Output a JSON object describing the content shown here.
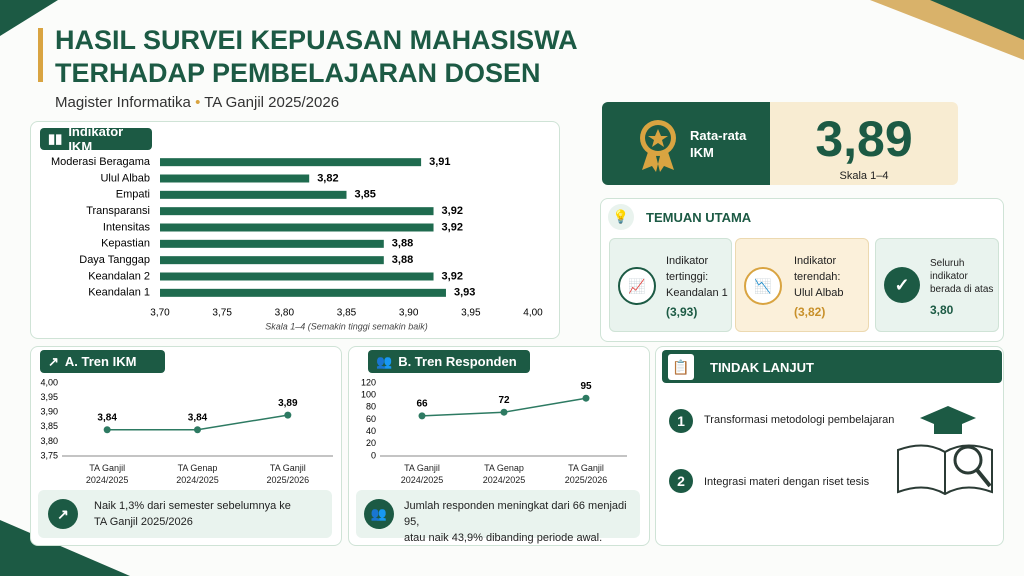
{
  "header": {
    "title": "HASIL SURVEI KEPUASAN MAHASISWA\nTERHADAP PEMBELAJARAN DOSEN",
    "program": "Magister Informatika",
    "period": "TA Ganjil 2025/2026"
  },
  "score": {
    "label": "Rata-rata\nIKM",
    "value": "3,89",
    "scale": "Skala 1–4"
  },
  "findings": {
    "title": "TEMUAN UTAMA",
    "items": [
      {
        "text": "Indikator\ntertinggi:\nKeandalan 1",
        "value": "(3,93)"
      },
      {
        "text": "Indikator\nterendah:\nUlul Albab",
        "value": "(3,82)"
      },
      {
        "text": "Seluruh\nindikator\nberada di atas",
        "value": "3,80"
      }
    ]
  },
  "followup": {
    "title": "TINDAK LANJUT",
    "items": [
      {
        "number": "1",
        "text": "Transformasi metodologi pembelajaran"
      },
      {
        "number": "2",
        "text": "Integrasi materi dengan riset tesis"
      }
    ]
  },
  "chart_data": [
    {
      "type": "barh",
      "title": "Indikator IKM",
      "x_label": "Skala 1–4 (Semakin tinggi semakin baik)",
      "categories": [
        "Moderasi Beragama",
        "Ulul Albab",
        "Empati",
        "Transparansi",
        "Intensitas",
        "Kepastian",
        "Daya Tanggap",
        "Keandalan 2",
        "Keandalan 1"
      ],
      "values": [
        3.91,
        3.82,
        3.85,
        3.92,
        3.92,
        3.88,
        3.88,
        3.92,
        3.93
      ],
      "value_labels": [
        "3,91",
        "3,82",
        "3,85",
        "3,92",
        "3,92",
        "3,88",
        "3,88",
        "3,92",
        "3,93"
      ],
      "color": "#1f6b4f",
      "grid": false,
      "xlim": [
        3.7,
        4.0
      ],
      "xticks": [
        {
          "value": 3.7,
          "label": "3,70"
        },
        {
          "value": 3.75,
          "label": "3,75"
        },
        {
          "value": 3.8,
          "label": "3,80"
        },
        {
          "value": 3.85,
          "label": "3,85"
        },
        {
          "value": 3.9,
          "label": "3,90"
        },
        {
          "value": 3.95,
          "label": "3,95"
        },
        {
          "value": 4.0,
          "label": "4,00"
        }
      ]
    },
    {
      "type": "line",
      "title": "A. Tren IKM",
      "note": "Naik 1,3% dari semester sebelumnya ke\nTA Ganjil 2025/2026",
      "categories": [
        "TA Ganjil\n2024/2025",
        "TA Genap\n2024/2025",
        "TA Ganjil\n2025/2026"
      ],
      "values": [
        3.84,
        3.84,
        3.89
      ],
      "value_labels": [
        "3,84",
        "3,84",
        "3,89"
      ],
      "color": "#2d7a62",
      "grid": false,
      "ylim": [
        3.75,
        4.0
      ],
      "yticks": [
        {
          "value": 3.75,
          "label": "3,75"
        },
        {
          "value": 3.8,
          "label": "3,80"
        },
        {
          "value": 3.85,
          "label": "3,85"
        },
        {
          "value": 3.9,
          "label": "3,90"
        },
        {
          "value": 3.95,
          "label": "3,95"
        },
        {
          "value": 4.0,
          "label": "4,00"
        }
      ]
    },
    {
      "type": "line",
      "title": "B. Tren Responden",
      "note": "Jumlah responden meningkat dari 66 menjadi 95,\natau naik 43,9% dibanding periode awal.",
      "categories": [
        "TA Ganjil\n2024/2025",
        "TA Genap\n2024/2025",
        "TA Ganjil\n2025/2026"
      ],
      "values": [
        66,
        72,
        95
      ],
      "color": "#2d7a62",
      "grid": false,
      "ylim": [
        0,
        120
      ],
      "yticks": [
        0,
        20,
        40,
        60,
        80,
        100,
        120
      ]
    }
  ]
}
